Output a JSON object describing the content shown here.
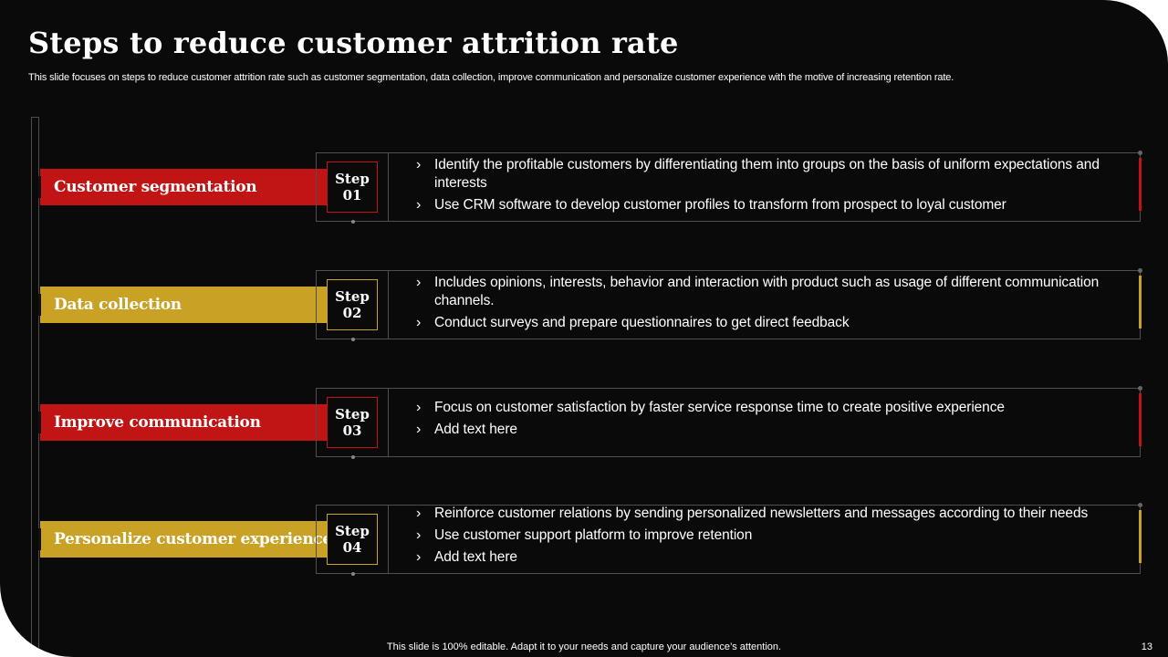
{
  "slide": {
    "title": "Steps to reduce customer attrition rate",
    "subtitle": "This slide focuses on steps to reduce customer attrition rate such as customer segmentation, data collection, improve communication and personalize customer experience with the motive of increasing retention rate.",
    "footer": "This slide is 100% editable. Adapt it to your needs and capture your audience’s attention.",
    "page_number": "13"
  },
  "colors": {
    "red": "#c11515",
    "gold": "#c9a225",
    "background": "#0b0a0a"
  },
  "steps": [
    {
      "label": "Customer segmentation",
      "step_word": "Step",
      "step_number": "01",
      "accent": "#c11515",
      "bullets": [
        "Identify the profitable customers by differentiating them into groups on the basis of uniform expectations and interests",
        "Use CRM software to develop customer profiles to transform from prospect to loyal customer"
      ]
    },
    {
      "label": "Data collection",
      "step_word": "Step",
      "step_number": "02",
      "accent": "#c9a225",
      "bullets": [
        "Includes opinions, interests, behavior and interaction with product such as usage of different communication channels.",
        "Conduct surveys and prepare questionnaires to get direct feedback"
      ]
    },
    {
      "label": "Improve communication",
      "step_word": "Step",
      "step_number": "03",
      "accent": "#c11515",
      "bullets": [
        "Focus on customer satisfaction by faster service response time to create positive experience",
        "Add text here"
      ]
    },
    {
      "label": "Personalize customer experience",
      "step_word": "Step",
      "step_number": "04",
      "accent": "#c9a225",
      "bullets": [
        "Reinforce customer relations by sending personalized newsletters and messages according to their needs",
        "Use customer support platform to improve retention",
        "Add text here"
      ]
    }
  ]
}
